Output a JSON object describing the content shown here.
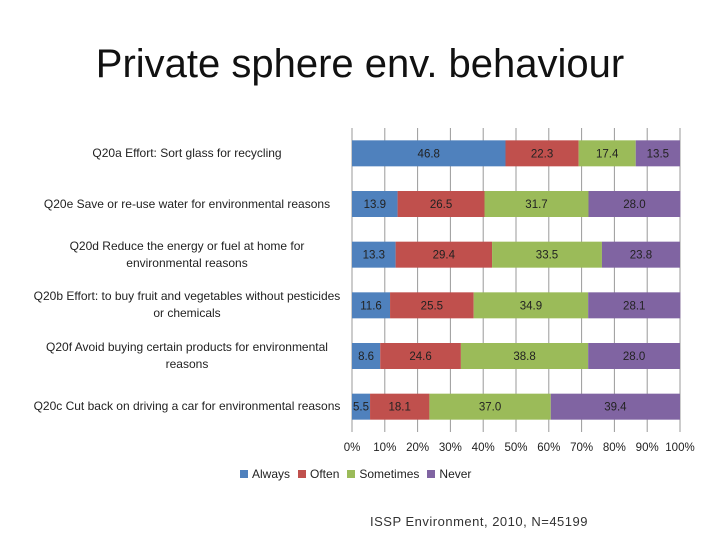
{
  "title": "Private sphere env. behaviour",
  "source": "ISSP Environment, 2010, N=45199",
  "colors": {
    "Always": "#4f81bd",
    "Often": "#c0504d",
    "Sometimes": "#9bbb59",
    "Never": "#8064a2",
    "grid": "#9a9a9a"
  },
  "chart_data": {
    "type": "bar",
    "orientation": "horizontal",
    "stacked": true,
    "percent_stacked": true,
    "categories": [
      "Q20a Effort: Sort glass for recycling",
      "Q20e Save or re-use water for environmental reasons",
      "Q20d Reduce the energy or fuel at home for environmental reasons",
      "Q20b Effort: to buy fruit and vegetables without pesticides or chemicals",
      "Q20f Avoid buying certain products for environmental reasons",
      "Q20c Cut back on driving a car for environmental reasons"
    ],
    "series": [
      {
        "name": "Always",
        "values": [
          46.8,
          13.9,
          13.3,
          11.6,
          8.6,
          5.5
        ]
      },
      {
        "name": "Often",
        "values": [
          22.3,
          26.5,
          29.4,
          25.5,
          24.6,
          18.1
        ]
      },
      {
        "name": "Sometimes",
        "values": [
          17.4,
          31.7,
          33.5,
          34.9,
          38.8,
          37.0
        ]
      },
      {
        "name": "Never",
        "values": [
          13.5,
          28.0,
          23.8,
          28.1,
          28.0,
          39.4
        ]
      }
    ],
    "x_ticks": [
      "0%",
      "10%",
      "20%",
      "30%",
      "40%",
      "50%",
      "60%",
      "70%",
      "80%",
      "90%",
      "100%"
    ],
    "xlim": [
      0,
      100
    ],
    "grid": true,
    "legend_position": "bottom"
  }
}
